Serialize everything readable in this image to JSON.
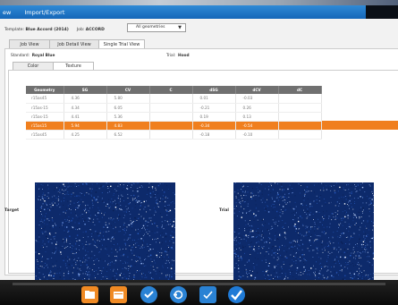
{
  "menu": {
    "prefix": "ew",
    "import_export": "Import/Export"
  },
  "template_bar": {
    "template_label": "Template:",
    "template_value": "Blue Accord (2014)",
    "job_label": "Job:",
    "job_value": "ACCORD",
    "geometry_select": "All geometries"
  },
  "tabs": [
    "Job View",
    "Job Detail View",
    "Single Trial View"
  ],
  "standard": {
    "label": "Standard:",
    "value": "Royal Blue"
  },
  "trial": {
    "label": "Trial:",
    "value": "Hood"
  },
  "subtabs": [
    "Color",
    "Texture"
  ],
  "table": {
    "headers": [
      "Geometry",
      "SG",
      "CV",
      "C",
      "dSG",
      "dCV",
      "dC"
    ],
    "rows": [
      [
        "r15as45",
        "4.36",
        "5.80",
        "",
        "0.01",
        "-0.03",
        ""
      ],
      [
        "r15as-15",
        "4.34",
        "6.05",
        "",
        "-0.21",
        "0.26",
        ""
      ],
      [
        "r15as-15",
        "4.41",
        "5.36",
        "",
        "0.19",
        "0.13",
        ""
      ],
      [
        "r15as15",
        "5.94",
        "4.83",
        "",
        "-0.34",
        "-0.54",
        ""
      ],
      [
        "r15as45",
        "4.25",
        "6.52",
        "",
        "-0.18",
        "-0.10",
        ""
      ]
    ],
    "selected_index": 3
  },
  "labels": {
    "target": "Target",
    "trial": "Trial"
  },
  "dock_icons": [
    "folder-icon",
    "folder-open-icon",
    "check-doc-icon",
    "report-icon",
    "check-shield-icon",
    "checkmark-icon"
  ],
  "colors": {
    "menu_blue": "#1f74c6",
    "selected_row": "#f07f1e",
    "texture": "#0d2a6b"
  }
}
